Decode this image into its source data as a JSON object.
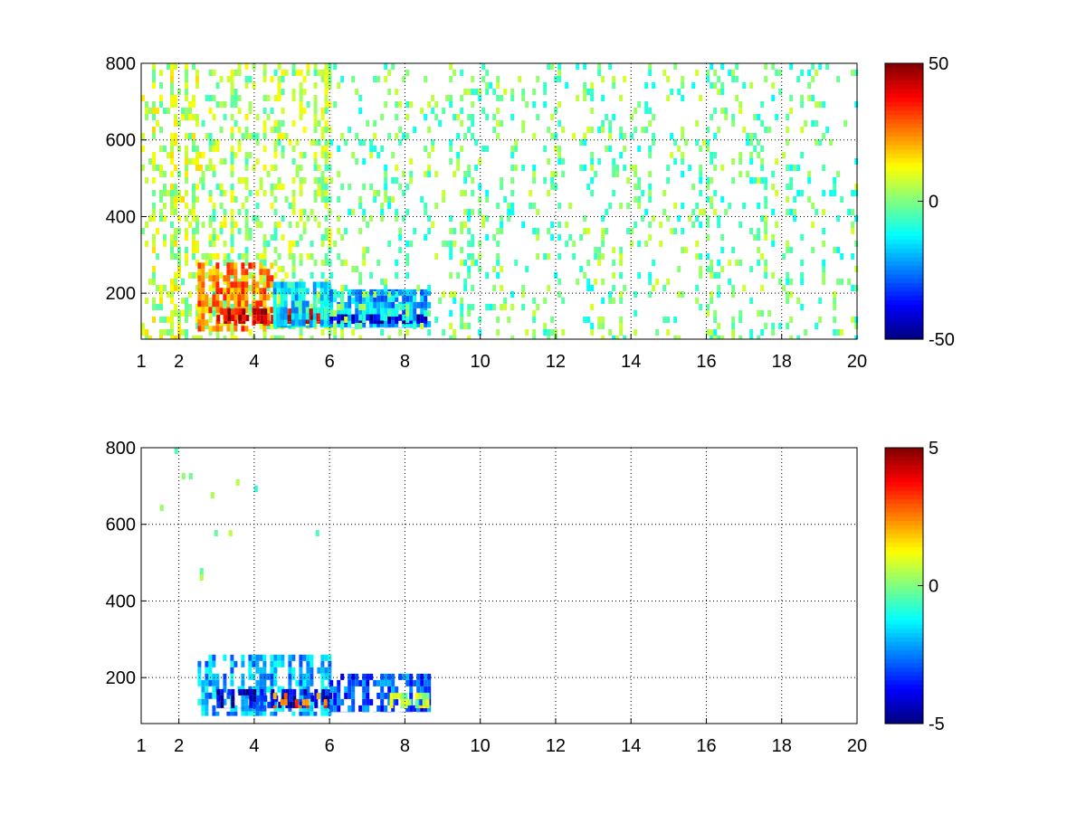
{
  "chart_data": [
    {
      "type": "heatmap",
      "title": "",
      "xlabel": "",
      "ylabel": "",
      "xlim": [
        1,
        20
      ],
      "ylim": [
        80,
        800
      ],
      "x_ticks": [
        "1",
        "2",
        "4",
        "6",
        "8",
        "10",
        "12",
        "14",
        "16",
        "18",
        "20"
      ],
      "y_ticks": [
        "200",
        "400",
        "600",
        "800"
      ],
      "grid": true,
      "colormap": "jet",
      "colorbar": {
        "range": [
          -50,
          50
        ],
        "ticks": [
          "50",
          "0",
          "-50"
        ]
      },
      "regions": [
        {
          "x": [
            1.0,
            2.6
          ],
          "y": [
            80,
            800
          ],
          "value": 6,
          "density": 0.35,
          "note": "sparse vertical streaks"
        },
        {
          "x": [
            2.6,
            6.0
          ],
          "y": [
            80,
            800
          ],
          "value": 3,
          "density": 0.3
        },
        {
          "x": [
            2.5,
            4.5
          ],
          "y": [
            100,
            280
          ],
          "value": 25,
          "density": 0.85
        },
        {
          "x": [
            3.0,
            6.0
          ],
          "y": [
            120,
            160
          ],
          "value": 40,
          "density": 0.95,
          "note": "red band"
        },
        {
          "x": [
            4.5,
            6.0
          ],
          "y": [
            110,
            230
          ],
          "value": -15,
          "density": 0.8
        },
        {
          "x": [
            6.0,
            8.6
          ],
          "y": [
            110,
            210
          ],
          "value": -20,
          "density": 0.85
        },
        {
          "x": [
            6.0,
            8.6
          ],
          "y": [
            120,
            145
          ],
          "value": -42,
          "density": 0.95,
          "note": "blue band"
        },
        {
          "x": [
            6.0,
            20.0
          ],
          "y": [
            80,
            800
          ],
          "value": -2,
          "density": 0.16
        }
      ]
    },
    {
      "type": "heatmap",
      "title": "",
      "xlabel": "",
      "ylabel": "",
      "xlim": [
        1,
        20
      ],
      "ylim": [
        80,
        800
      ],
      "x_ticks": [
        "1",
        "2",
        "4",
        "6",
        "8",
        "10",
        "12",
        "14",
        "16",
        "18",
        "20"
      ],
      "y_ticks": [
        "200",
        "400",
        "600",
        "800"
      ],
      "grid": true,
      "colormap": "jet",
      "colorbar": {
        "range": [
          -5,
          5
        ],
        "ticks": [
          "5",
          "0",
          "-5"
        ]
      },
      "regions": [
        {
          "x": [
            2.5,
            6.0
          ],
          "y": [
            100,
            260
          ],
          "value": -2,
          "density": 0.55
        },
        {
          "x": [
            3.0,
            6.0
          ],
          "y": [
            120,
            170
          ],
          "value": -4,
          "density": 0.75
        },
        {
          "x": [
            4.5,
            6.0
          ],
          "y": [
            120,
            160
          ],
          "value": 3,
          "density": 0.35
        },
        {
          "x": [
            6.0,
            8.6
          ],
          "y": [
            110,
            210
          ],
          "value": -3,
          "density": 0.55
        },
        {
          "x": [
            7.5,
            8.6
          ],
          "y": [
            120,
            160
          ],
          "value": 0.5,
          "density": 0.6
        },
        {
          "x": [
            1.5,
            6.0
          ],
          "y": [
            350,
            800
          ],
          "value": 0,
          "density": 0.015
        }
      ]
    }
  ]
}
